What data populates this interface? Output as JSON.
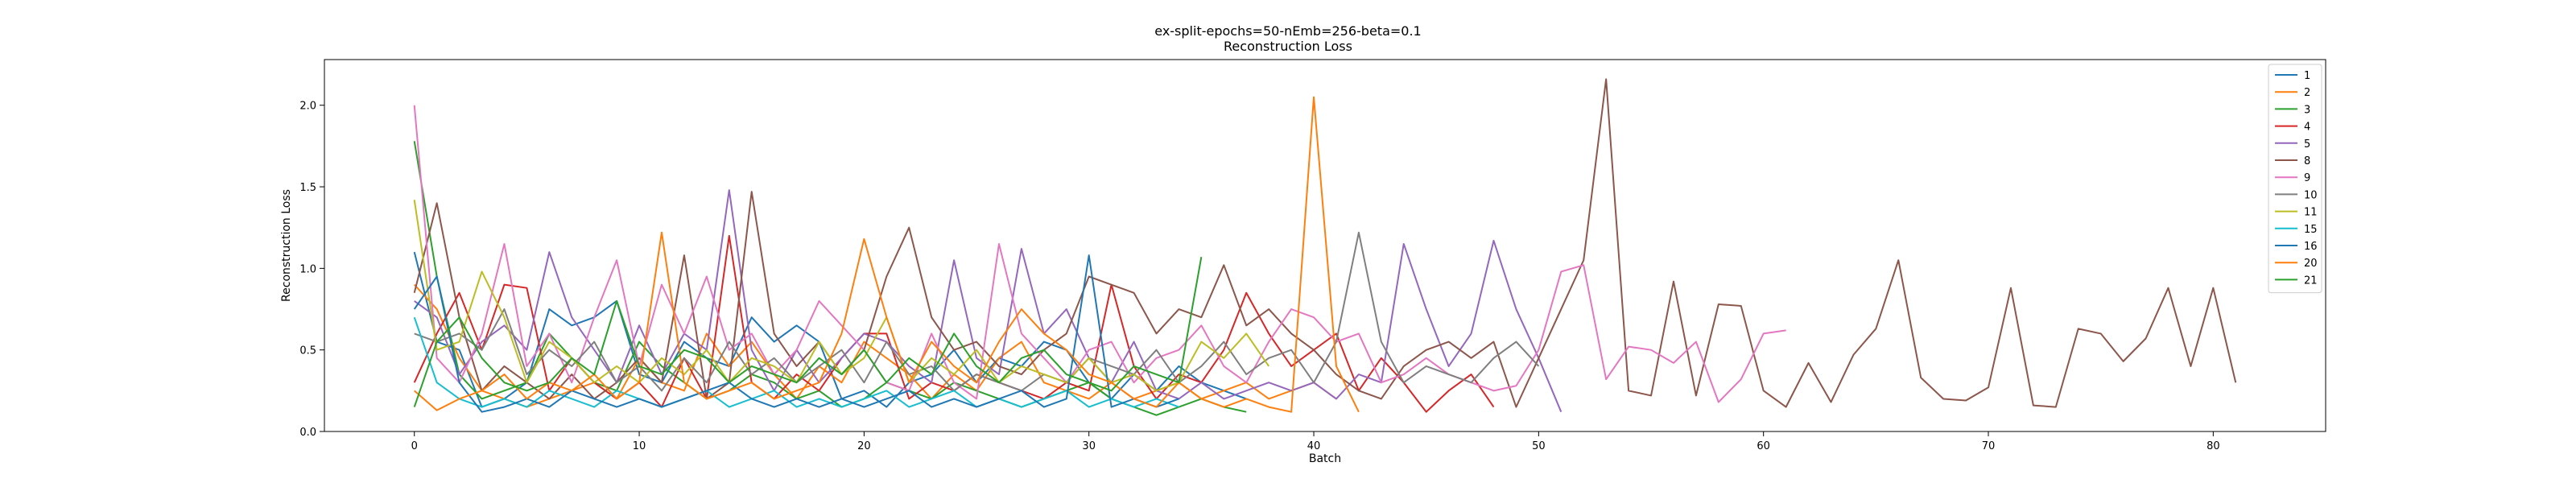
{
  "chart_data": {
    "type": "line",
    "title": "ex-split-epochs=50-nEmb=256-beta=0.1",
    "subtitle": "Reconstruction Loss",
    "xlabel": "Batch",
    "ylabel": "Reconstruction Loss",
    "xlim": [
      -4,
      85
    ],
    "ylim": [
      0,
      2.28
    ],
    "xticks": [
      0,
      10,
      20,
      30,
      40,
      50,
      60,
      70,
      80
    ],
    "yticks": [
      0.0,
      0.5,
      1.0,
      1.5,
      2.0
    ],
    "xtick_labels": [
      "0",
      "10",
      "20",
      "30",
      "40",
      "50",
      "60",
      "70",
      "80"
    ],
    "ytick_labels": [
      "0.0",
      "0.5",
      "1.0",
      "1.5",
      "2.0"
    ],
    "legend_position": "top-right",
    "grid": false,
    "series": [
      {
        "name": "1",
        "color": "#1f77b4",
        "values": [
          1.1,
          0.55,
          0.5,
          0.15,
          0.2,
          0.3,
          0.75,
          0.65,
          0.7,
          0.8,
          0.35,
          0.3,
          0.55,
          0.45,
          0.4,
          0.7,
          0.55,
          0.65,
          0.55,
          0.2,
          0.25,
          0.15,
          0.3,
          0.35,
          0.5,
          0.3,
          0.45,
          0.4,
          0.55,
          0.5,
          0.3,
          0.2,
          0.35,
          0.25,
          0.4,
          0.3,
          0.25,
          0.2
        ]
      },
      {
        "name": "2",
        "color": "#ff7f0e",
        "values": [
          0.9,
          0.75,
          0.45,
          0.25,
          0.2,
          0.15,
          0.2,
          0.25,
          0.3,
          0.2,
          0.45,
          0.3,
          0.25,
          0.6,
          0.4,
          0.55,
          0.35,
          0.2,
          0.4,
          0.3,
          0.55,
          0.45,
          0.35,
          0.2,
          0.35,
          0.25,
          0.45,
          0.55,
          0.3,
          0.25,
          0.2,
          0.3,
          0.2,
          0.25,
          0.3,
          0.2,
          0.25,
          0.3,
          0.2,
          0.25,
          0.3,
          0.2
        ]
      },
      {
        "name": "3",
        "color": "#2ca02c",
        "values": [
          1.78,
          0.95,
          0.35,
          0.2,
          0.25,
          0.3,
          0.6,
          0.45,
          0.3,
          0.25,
          0.55,
          0.4,
          0.3,
          0.2,
          0.25,
          0.35,
          0.3,
          0.2,
          0.25,
          0.15,
          0.2,
          0.3,
          0.25,
          0.2,
          0.3,
          0.25,
          0.2,
          0.15,
          0.2,
          0.25,
          0.3,
          0.2,
          0.15,
          0.1,
          0.15,
          0.2,
          0.15,
          0.12
        ]
      },
      {
        "name": "4",
        "color": "#d62728",
        "values": [
          0.3,
          0.6,
          0.85,
          0.5,
          0.9,
          0.88,
          0.25,
          0.45,
          0.3,
          0.2,
          0.3,
          0.15,
          0.45,
          0.2,
          1.2,
          0.3,
          0.2,
          0.35,
          0.25,
          0.45,
          0.6,
          0.6,
          0.2,
          0.3,
          0.25,
          0.35,
          0.3,
          0.25,
          0.2,
          0.3,
          0.25,
          0.9,
          0.4,
          0.2,
          0.35,
          0.3,
          0.5,
          0.85,
          0.6,
          0.4,
          0.5,
          0.6,
          0.25,
          0.45,
          0.3,
          0.12,
          0.25,
          0.35,
          0.15
        ]
      },
      {
        "name": "5",
        "color": "#9467bd",
        "values": [
          0.8,
          0.7,
          0.35,
          0.55,
          0.65,
          0.5,
          1.1,
          0.7,
          0.5,
          0.3,
          0.65,
          0.35,
          0.6,
          0.5,
          1.48,
          0.5,
          0.25,
          0.5,
          0.3,
          0.45,
          0.6,
          0.55,
          0.4,
          0.3,
          1.05,
          0.45,
          0.35,
          1.12,
          0.6,
          0.75,
          0.45,
          0.3,
          0.55,
          0.25,
          0.2,
          0.3,
          0.2,
          0.25,
          0.3,
          0.25,
          0.3,
          0.2,
          0.35,
          0.3,
          1.15,
          0.75,
          0.4,
          0.6,
          1.17,
          0.75,
          0.45,
          0.12
        ]
      },
      {
        "name": "8",
        "color": "#8c564b",
        "values": [
          0.85,
          1.4,
          0.7,
          0.25,
          0.4,
          0.3,
          0.2,
          0.35,
          0.2,
          0.3,
          0.45,
          0.3,
          1.08,
          0.2,
          0.3,
          1.47,
          0.6,
          0.4,
          0.55,
          0.35,
          0.5,
          0.95,
          1.25,
          0.7,
          0.5,
          0.55,
          0.4,
          0.35,
          0.5,
          0.6,
          0.95,
          0.9,
          0.85,
          0.6,
          0.75,
          0.7,
          1.02,
          0.65,
          0.75,
          0.6,
          0.5,
          0.35,
          0.25,
          0.2,
          0.4,
          0.5,
          0.55,
          0.45,
          0.55,
          0.15,
          0.45,
          0.75,
          1.05,
          2.16,
          0.25,
          0.22,
          0.92,
          0.22,
          0.78,
          0.77,
          0.25,
          0.15,
          0.42,
          0.18,
          0.47,
          0.63,
          1.05,
          0.33,
          0.2,
          0.19,
          0.27,
          0.88,
          0.16,
          0.15,
          0.63,
          0.6,
          0.43,
          0.57,
          0.88,
          0.4,
          0.88,
          0.3
        ]
      },
      {
        "name": "9",
        "color": "#e377c2",
        "values": [
          2.0,
          0.45,
          0.3,
          0.6,
          1.15,
          0.4,
          0.6,
          0.3,
          0.7,
          1.05,
          0.4,
          0.9,
          0.6,
          0.95,
          0.5,
          0.6,
          0.35,
          0.5,
          0.8,
          0.65,
          0.5,
          0.3,
          0.25,
          0.6,
          0.3,
          0.2,
          1.15,
          0.6,
          0.45,
          0.3,
          0.5,
          0.55,
          0.3,
          0.45,
          0.5,
          0.65,
          0.4,
          0.3,
          0.55,
          0.75,
          0.7,
          0.55,
          0.6,
          0.3,
          0.35,
          0.45,
          0.35,
          0.3,
          0.25,
          0.28,
          0.5,
          0.98,
          1.02,
          0.32,
          0.52,
          0.5,
          0.42,
          0.55,
          0.18,
          0.32,
          0.6,
          0.62
        ]
      },
      {
        "name": "10",
        "color": "#7f7f7f",
        "values": [
          0.6,
          0.55,
          0.6,
          0.5,
          0.75,
          0.35,
          0.5,
          0.4,
          0.55,
          0.3,
          0.4,
          0.25,
          0.45,
          0.3,
          0.55,
          0.35,
          0.45,
          0.3,
          0.4,
          0.5,
          0.3,
          0.55,
          0.35,
          0.4,
          0.25,
          0.35,
          0.3,
          0.25,
          0.35,
          0.3,
          0.45,
          0.4,
          0.35,
          0.5,
          0.3,
          0.4,
          0.55,
          0.35,
          0.45,
          0.5,
          0.3,
          0.55,
          1.22,
          0.55,
          0.3,
          0.4,
          0.35,
          0.3,
          0.45,
          0.55,
          0.4
        ]
      },
      {
        "name": "11",
        "color": "#bcbd22",
        "values": [
          1.42,
          0.5,
          0.55,
          0.98,
          0.7,
          0.3,
          0.55,
          0.45,
          0.3,
          0.4,
          0.3,
          0.45,
          0.35,
          0.5,
          0.3,
          0.45,
          0.4,
          0.3,
          0.55,
          0.35,
          0.45,
          0.7,
          0.3,
          0.45,
          0.35,
          0.5,
          0.3,
          0.4,
          0.35,
          0.3,
          0.45,
          0.3,
          0.35,
          0.25,
          0.3,
          0.55,
          0.45,
          0.6,
          0.4
        ]
      },
      {
        "name": "15",
        "color": "#17becf",
        "values": [
          0.7,
          0.3,
          0.2,
          0.15,
          0.2,
          0.15,
          0.25,
          0.2,
          0.15,
          0.25,
          0.2,
          0.15,
          0.2,
          0.25,
          0.15,
          0.2,
          0.25,
          0.15,
          0.2,
          0.15,
          0.2,
          0.25,
          0.15,
          0.2,
          0.25,
          0.15,
          0.2,
          0.15,
          0.2,
          0.25,
          0.15,
          0.2,
          0.15,
          0.2,
          0.15
        ]
      },
      {
        "name": "16",
        "color": "#1f77b4",
        "values": [
          0.75,
          0.95,
          0.3,
          0.12,
          0.15,
          0.2,
          0.15,
          0.25,
          0.2,
          0.15,
          0.2,
          0.15,
          0.2,
          0.25,
          0.3,
          0.2,
          0.15,
          0.2,
          0.15,
          0.2,
          0.15,
          0.2,
          0.25,
          0.15,
          0.2,
          0.15,
          0.2,
          0.25,
          0.15,
          0.2,
          1.08,
          0.15,
          0.2,
          0.15,
          0.2
        ]
      },
      {
        "name": "20",
        "color": "#ff7f0e",
        "values": [
          0.25,
          0.13,
          0.2,
          0.25,
          0.35,
          0.2,
          0.3,
          0.25,
          0.35,
          0.2,
          0.3,
          1.22,
          0.3,
          0.2,
          0.25,
          0.3,
          0.2,
          0.25,
          0.3,
          0.6,
          1.18,
          0.7,
          0.3,
          0.55,
          0.4,
          0.3,
          0.55,
          0.75,
          0.6,
          0.5,
          0.35,
          0.3,
          0.2,
          0.15,
          0.3,
          0.2,
          0.15,
          0.2,
          0.15,
          0.12,
          2.05,
          0.4,
          0.12
        ]
      },
      {
        "name": "21",
        "color": "#2ca02c",
        "values": [
          0.15,
          0.55,
          0.7,
          0.45,
          0.3,
          0.25,
          0.3,
          0.45,
          0.35,
          0.8,
          0.4,
          0.35,
          0.5,
          0.45,
          0.3,
          0.4,
          0.35,
          0.3,
          0.45,
          0.35,
          0.5,
          0.3,
          0.45,
          0.35,
          0.6,
          0.4,
          0.3,
          0.45,
          0.5,
          0.35,
          0.3,
          0.25,
          0.4,
          0.35,
          0.3,
          1.07
        ]
      }
    ]
  }
}
